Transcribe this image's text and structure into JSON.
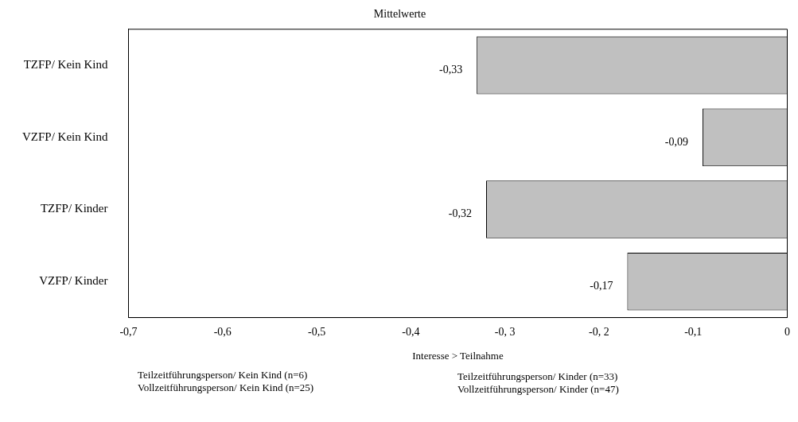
{
  "chart_data": {
    "type": "bar",
    "orientation": "horizontal",
    "title": "Mittelwerte",
    "xlabel": "Interesse > Teilnahme",
    "categories": [
      "TZFP/ Kein Kind",
      "VZFP/ Kein Kind",
      "TZFP/ Kinder",
      "VZFP/ Kinder"
    ],
    "values": [
      -0.33,
      -0.09,
      -0.32,
      -0.17
    ],
    "color": "#c0c0c0",
    "value_labels": [
      "-0,33",
      "-0,09",
      "-0,32",
      "-0,17"
    ],
    "xlim": [
      -0.7,
      0
    ],
    "xticks": [
      {
        "value": -0.7,
        "label": "-0,7"
      },
      {
        "value": -0.6,
        "label": "-0,6"
      },
      {
        "value": -0.5,
        "label": "-0,5"
      },
      {
        "value": -0.4,
        "label": "-0,4"
      },
      {
        "value": -0.3,
        "label": "-0, 3"
      },
      {
        "value": -0.2,
        "label": "-0, 2"
      },
      {
        "value": -0.1,
        "label": "-0,1"
      },
      {
        "value": 0,
        "label": "0"
      }
    ],
    "grid": false,
    "legend": false,
    "annotations": [
      "Teilzeitführungsperson/ Kein Kind (n=6)",
      "Vollzeitführungsperson/ Kein Kind (n=25)",
      "Teilzeitführungsperson/ Kinder (n=33)",
      "Vollzeitführungsperson/ Kinder (n=47)"
    ]
  }
}
